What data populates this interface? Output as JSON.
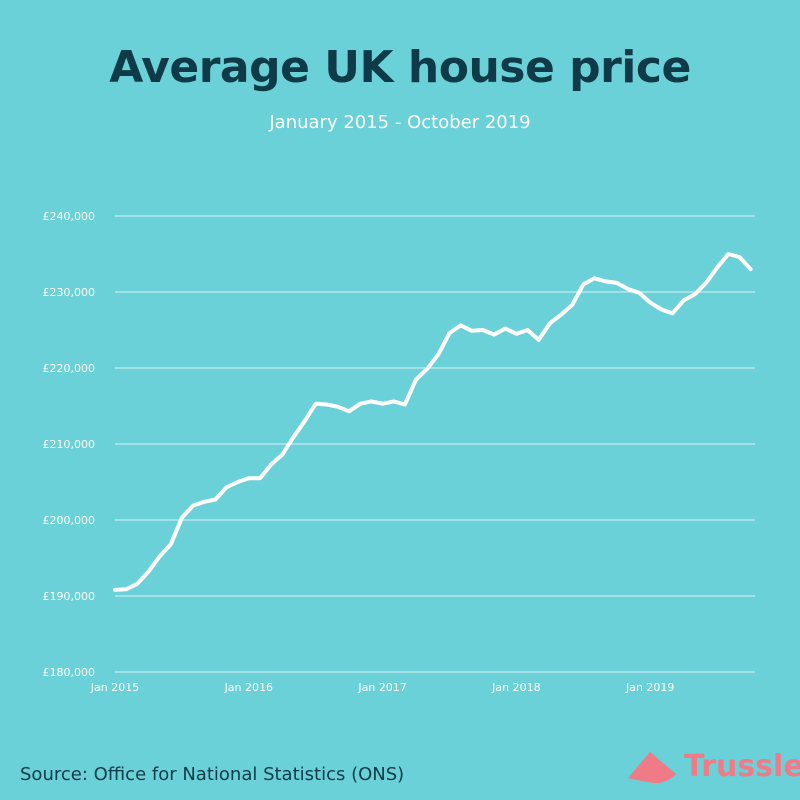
{
  "header": {
    "title": "Average UK house price",
    "subtitle": "January 2015 - October 2019"
  },
  "footer": {
    "source": "Source: Office for National Statistics (ONS)",
    "brand": "Trussle"
  },
  "colors": {
    "background": "#6bd1d8",
    "title": "#0f3b49",
    "line": "#ffffff",
    "grid": "#ffffff",
    "brand": "#f07a86"
  },
  "chart_data": {
    "type": "line",
    "title": "Average UK house price",
    "subtitle": "January 2015 - October 2019",
    "xlabel": "",
    "ylabel": "",
    "ylim": [
      180000,
      240000
    ],
    "yticks": [
      180000,
      190000,
      200000,
      210000,
      220000,
      230000,
      240000
    ],
    "ytick_labels": [
      "£180,000",
      "£190,000",
      "£200,000",
      "£210,000",
      "£220,000",
      "£230,000",
      "£240,000"
    ],
    "xtick_labels": [
      "Jan 2015",
      "Jan 2016",
      "Jan 2017",
      "Jan 2018",
      "Jan 2019"
    ],
    "xtick_index": [
      0,
      12,
      24,
      36,
      48
    ],
    "grid": true,
    "x": [
      "Jan 2015",
      "Feb 2015",
      "Mar 2015",
      "Apr 2015",
      "May 2015",
      "Jun 2015",
      "Jul 2015",
      "Aug 2015",
      "Sep 2015",
      "Oct 2015",
      "Nov 2015",
      "Dec 2015",
      "Jan 2016",
      "Feb 2016",
      "Mar 2016",
      "Apr 2016",
      "May 2016",
      "Jun 2016",
      "Jul 2016",
      "Aug 2016",
      "Sep 2016",
      "Oct 2016",
      "Nov 2016",
      "Dec 2016",
      "Jan 2017",
      "Feb 2017",
      "Mar 2017",
      "Apr 2017",
      "May 2017",
      "Jun 2017",
      "Jul 2017",
      "Aug 2017",
      "Sep 2017",
      "Oct 2017",
      "Nov 2017",
      "Dec 2017",
      "Jan 2018",
      "Feb 2018",
      "Mar 2018",
      "Apr 2018",
      "May 2018",
      "Jun 2018",
      "Jul 2018",
      "Aug 2018",
      "Sep 2018",
      "Oct 2018",
      "Nov 2018",
      "Dec 2018",
      "Jan 2019",
      "Feb 2019",
      "Mar 2019",
      "Apr 2019",
      "May 2019",
      "Jun 2019",
      "Jul 2019",
      "Aug 2019",
      "Sep 2019",
      "Oct 2019"
    ],
    "series": [
      {
        "values": [
          190800,
          190900,
          191600,
          193200,
          195200,
          196800,
          200300,
          201900,
          202400,
          202700,
          204300,
          205000,
          205500,
          205500,
          207300,
          208600,
          210900,
          213000,
          215300,
          215200,
          214900,
          214300,
          215300,
          215600,
          215300,
          215600,
          215200,
          218500,
          219900,
          221800,
          224600,
          225600,
          224900,
          225000,
          224400,
          225200,
          224500,
          225000,
          223700,
          225900,
          227000,
          228300,
          231000,
          231800,
          231400,
          231200,
          230400,
          229900,
          228600,
          227700,
          227200,
          228900,
          229700,
          231200,
          233200,
          235000,
          234600,
          233000
        ]
      }
    ]
  }
}
